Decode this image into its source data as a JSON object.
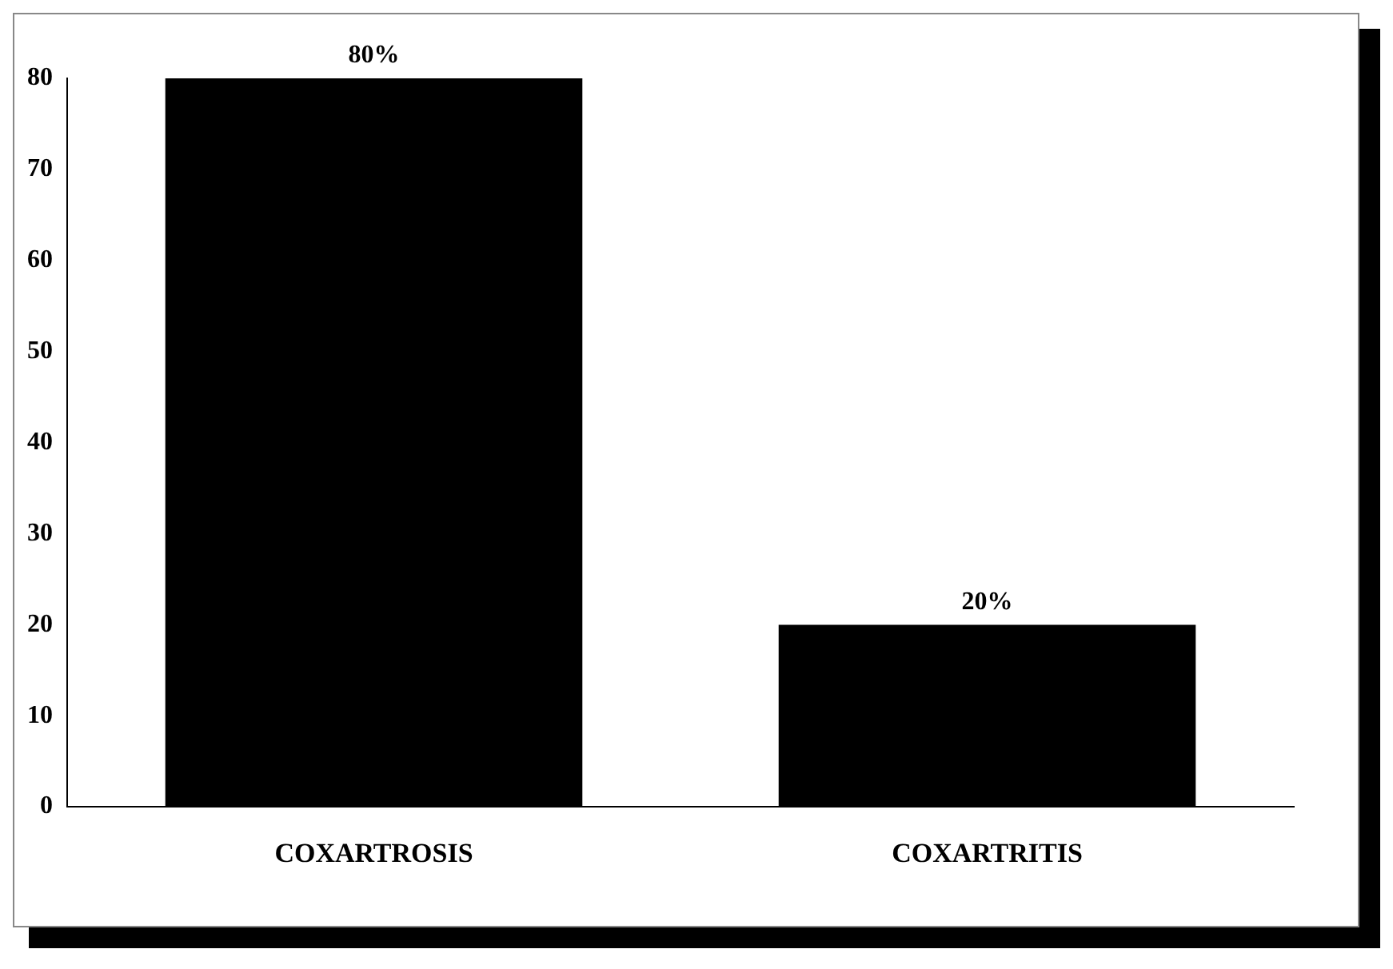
{
  "chart_data": {
    "type": "bar",
    "categories": [
      "COXARTROSIS",
      "COXARTRITIS"
    ],
    "values": [
      80,
      20
    ],
    "value_labels": [
      "80%",
      "20%"
    ],
    "color": "#000000",
    "ylim": [
      0,
      80
    ],
    "yticks": [
      0,
      10,
      20,
      30,
      40,
      50,
      60,
      70,
      80
    ],
    "grid": false,
    "legend": false
  }
}
